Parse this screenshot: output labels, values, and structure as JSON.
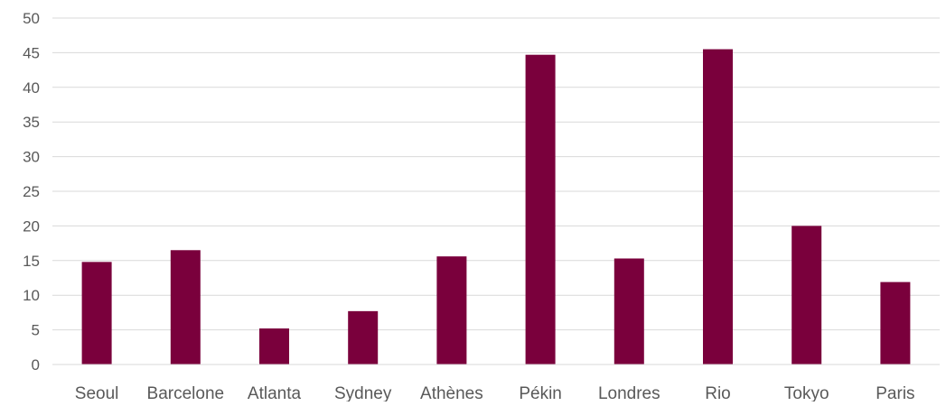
{
  "chart_data": {
    "type": "bar",
    "title": "",
    "xlabel": "",
    "ylabel": "",
    "categories": [
      "Seoul",
      "Barcelone",
      "Atlanta",
      "Sydney",
      "Athènes",
      "Pékin",
      "Londres",
      "Rio",
      "Tokyo",
      "Paris"
    ],
    "values": [
      14.8,
      16.5,
      5.2,
      7.7,
      15.6,
      44.7,
      15.3,
      45.5,
      20.0,
      11.9
    ],
    "ylim": [
      0,
      50
    ],
    "yticks": [
      0,
      5,
      10,
      15,
      20,
      25,
      30,
      35,
      40,
      45,
      50
    ],
    "grid": true,
    "legend": "none",
    "colors": {
      "bar": "#7a003c",
      "grid": "#d9d9d9",
      "text": "#595959"
    }
  }
}
